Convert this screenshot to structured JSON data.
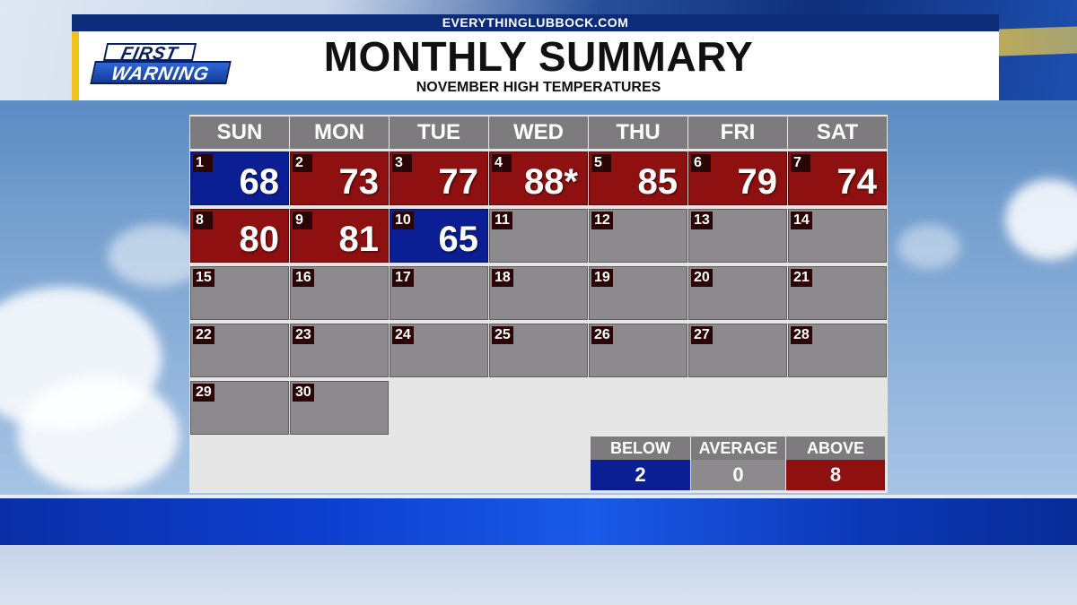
{
  "header": {
    "url": "EVERYTHINGLUBBOCK.COM",
    "logo_top": "FIRST",
    "logo_bottom": "WARNING",
    "title": "MONTHLY SUMMARY",
    "subtitle": "NOVEMBER HIGH TEMPERATURES"
  },
  "calendar": {
    "weekdays": [
      "SUN",
      "MON",
      "TUE",
      "WED",
      "THU",
      "FRI",
      "SAT"
    ],
    "days": [
      {
        "day": "1",
        "temp": "68",
        "status": "below"
      },
      {
        "day": "2",
        "temp": "73",
        "status": "above"
      },
      {
        "day": "3",
        "temp": "77",
        "status": "above"
      },
      {
        "day": "4",
        "temp": "88*",
        "status": "above"
      },
      {
        "day": "5",
        "temp": "85",
        "status": "above"
      },
      {
        "day": "6",
        "temp": "79",
        "status": "above"
      },
      {
        "day": "7",
        "temp": "74",
        "status": "above"
      },
      {
        "day": "8",
        "temp": "80",
        "status": "above"
      },
      {
        "day": "9",
        "temp": "81",
        "status": "above"
      },
      {
        "day": "10",
        "temp": "65",
        "status": "below"
      },
      {
        "day": "11",
        "temp": "",
        "status": "none"
      },
      {
        "day": "12",
        "temp": "",
        "status": "none"
      },
      {
        "day": "13",
        "temp": "",
        "status": "none"
      },
      {
        "day": "14",
        "temp": "",
        "status": "none"
      },
      {
        "day": "15",
        "temp": "",
        "status": "none"
      },
      {
        "day": "16",
        "temp": "",
        "status": "none"
      },
      {
        "day": "17",
        "temp": "",
        "status": "none"
      },
      {
        "day": "18",
        "temp": "",
        "status": "none"
      },
      {
        "day": "19",
        "temp": "",
        "status": "none"
      },
      {
        "day": "20",
        "temp": "",
        "status": "none"
      },
      {
        "day": "21",
        "temp": "",
        "status": "none"
      },
      {
        "day": "22",
        "temp": "",
        "status": "none"
      },
      {
        "day": "23",
        "temp": "",
        "status": "none"
      },
      {
        "day": "24",
        "temp": "",
        "status": "none"
      },
      {
        "day": "25",
        "temp": "",
        "status": "none"
      },
      {
        "day": "26",
        "temp": "",
        "status": "none"
      },
      {
        "day": "27",
        "temp": "",
        "status": "none"
      },
      {
        "day": "28",
        "temp": "",
        "status": "none"
      },
      {
        "day": "29",
        "temp": "",
        "status": "none"
      },
      {
        "day": "30",
        "temp": "",
        "status": "none"
      }
    ]
  },
  "legend": {
    "labels": [
      "BELOW",
      "AVERAGE",
      "ABOVE"
    ],
    "values": [
      "2",
      "0",
      "8"
    ],
    "colors": [
      "#0b1e94",
      "#8d8a8e",
      "#8e1010"
    ]
  },
  "colors": {
    "above": "#8e1010",
    "below": "#0b1e94",
    "none": "#8d8a8e",
    "header_bar": "#0c2c7a",
    "accent": "#f3c21a"
  }
}
